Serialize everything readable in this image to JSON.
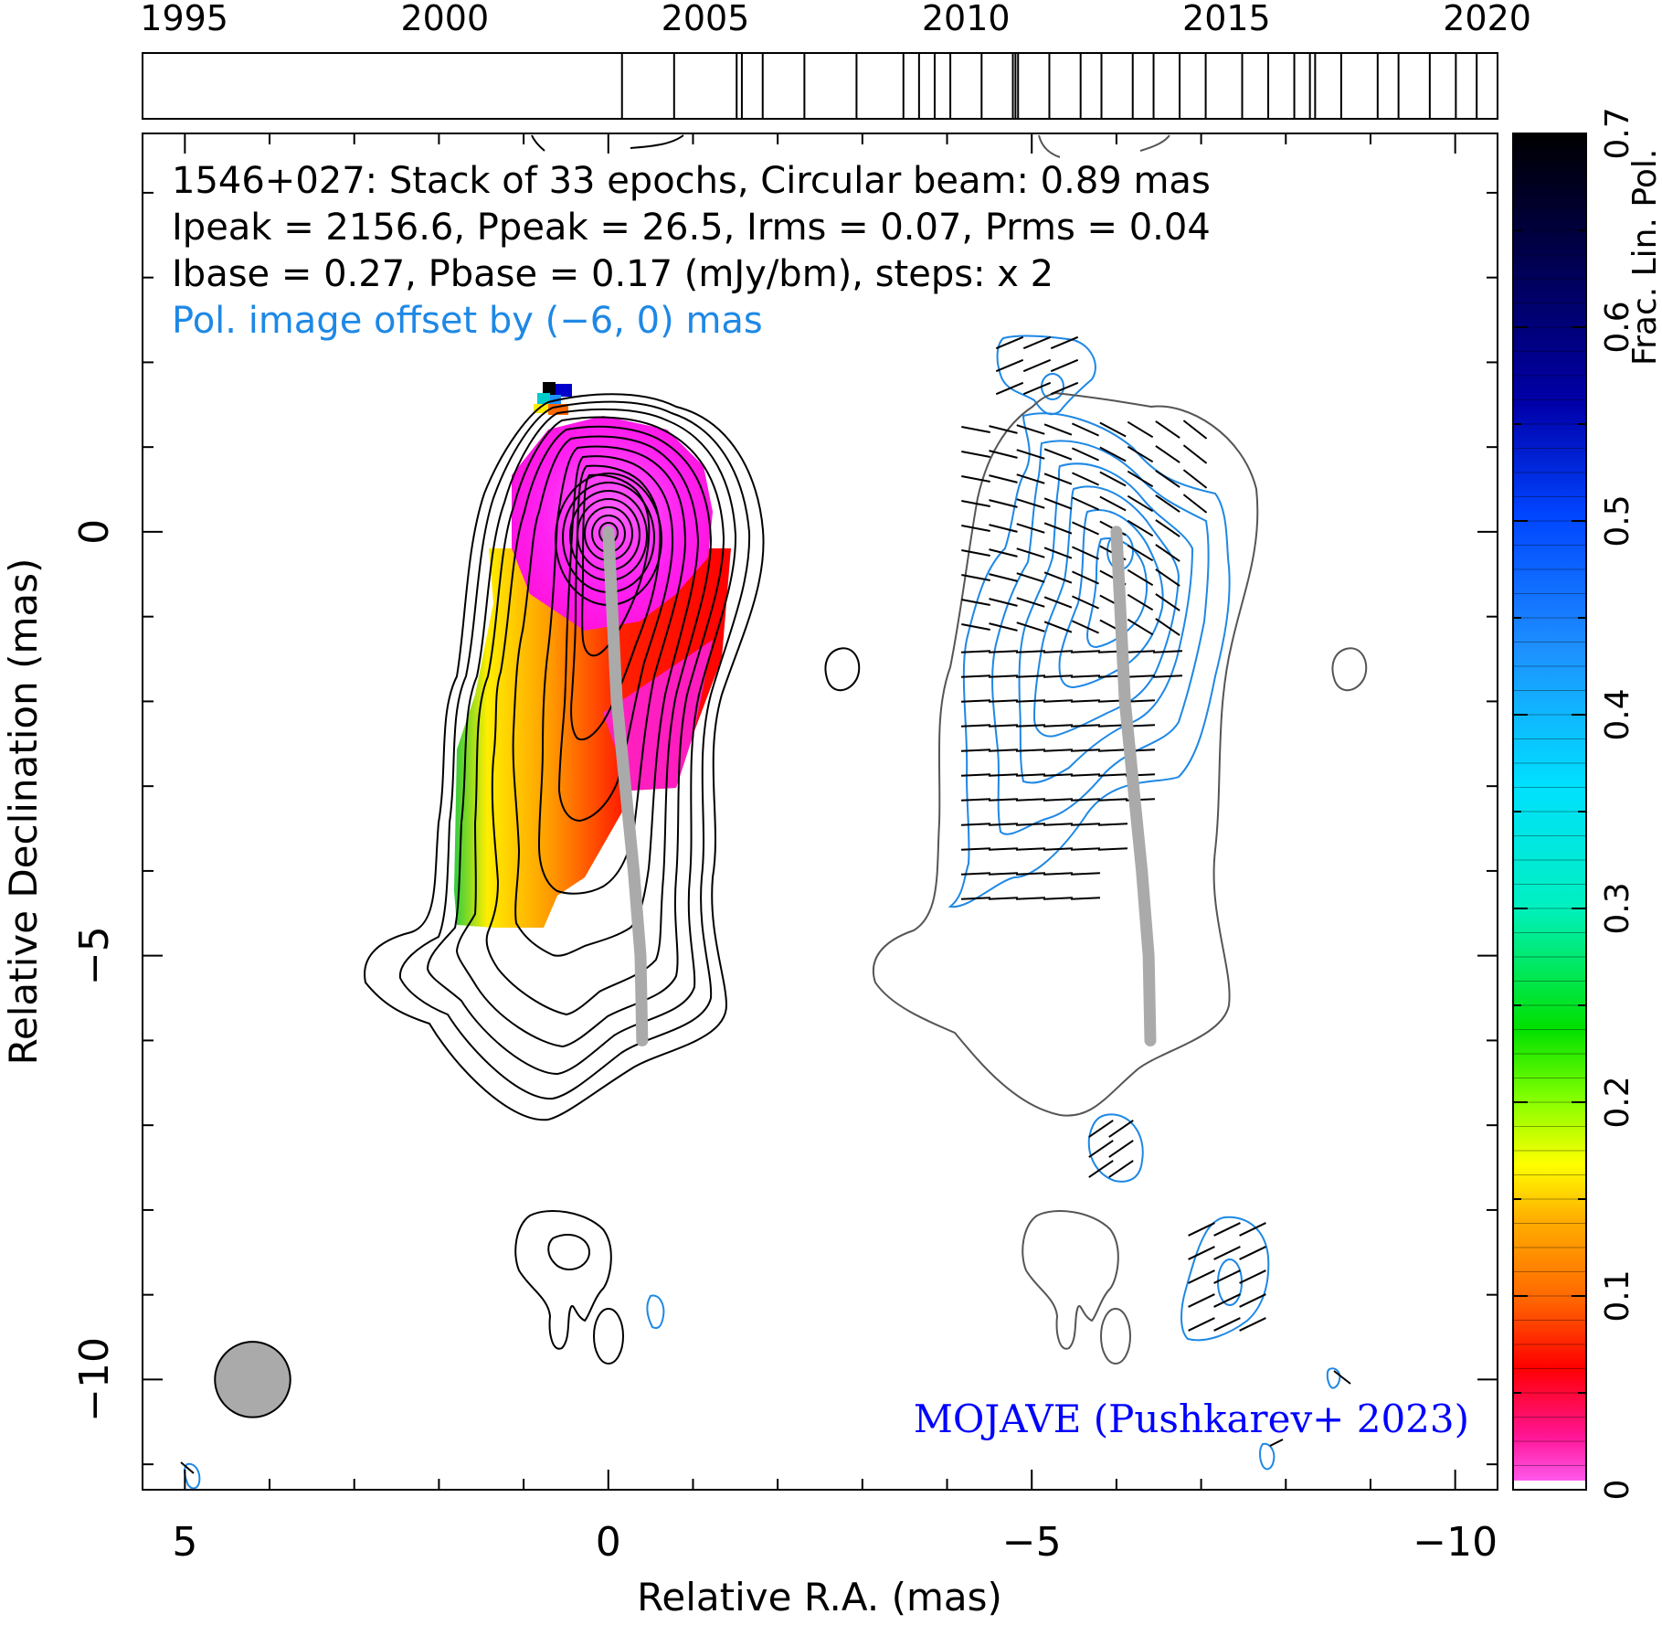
{
  "chart_data": {
    "type": "contour",
    "timeline": {
      "tick_labels": [
        "1995",
        "2000",
        "2005",
        "2010",
        "2015",
        "2020"
      ],
      "tick_years": [
        1995,
        2000,
        2005,
        2010,
        2015,
        2020
      ],
      "range": [
        1994.2,
        2020.2
      ],
      "epochs": [
        2003.4,
        2004.4,
        2005.6,
        2005.7,
        2006.1,
        2006.9,
        2007.9,
        2008.8,
        2009.1,
        2009.4,
        2009.7,
        2010.3,
        2010.9,
        2010.95,
        2011.0,
        2011.6,
        2012.2,
        2012.6,
        2013.2,
        2013.6,
        2014.1,
        2014.6,
        2015.3,
        2015.8,
        2016.3,
        2016.6,
        2016.7,
        2017.2,
        2017.9,
        2018.3,
        2018.9,
        2019.4,
        2019.8
      ]
    },
    "annotations": {
      "line1": "1546+027: Stack of 33 epochs, Circular beam: 0.89 mas",
      "line2": "Ipeak = 2156.6, Ppeak = 26.5, Irms = 0.07, Prms = 0.04",
      "line3": "Ibase = 0.27, Pbase = 0.17 (mJy/bm), steps: x 2",
      "pol_offset": "Pol. image offset by (−6, 0) mas",
      "credit": "MOJAVE (Pushkarev+ 2023)"
    },
    "xlabel": "Relative R.A. (mas)",
    "ylabel": "Relative Declination (mas)",
    "xlim": [
      5.5,
      -10.5
    ],
    "ylim": [
      -11.3,
      4.7
    ],
    "x_ticks": [
      5,
      0,
      -5,
      -10
    ],
    "x_tick_labels": [
      "5",
      "0",
      "−5",
      "−10"
    ],
    "y_ticks": [
      0,
      -5,
      -10
    ],
    "y_tick_labels": [
      "0",
      "−5",
      "−10"
    ],
    "colorbar": {
      "label": "Frac. Lin. Pol.",
      "range": [
        0,
        0.7
      ],
      "ticks": [
        0,
        0.1,
        0.2,
        0.3,
        0.4,
        0.5,
        0.6,
        0.7
      ],
      "tick_labels": [
        "0",
        "0.1",
        "0.2",
        "0.3",
        "0.4",
        "0.5",
        "0.6",
        "0.7"
      ]
    },
    "beam": {
      "x": 4.2,
      "y": -10.0,
      "diameter_mas": 0.89
    },
    "pol_offset_mas": [
      -6,
      0
    ],
    "ridge_line": [
      [
        0,
        0
      ],
      [
        -0.05,
        -1
      ],
      [
        -0.1,
        -2
      ],
      [
        -0.2,
        -3
      ],
      [
        -0.3,
        -4
      ],
      [
        -0.38,
        -5
      ],
      [
        -0.4,
        -6
      ]
    ],
    "colors": {
      "stokes_i_contours": "#000000",
      "pol_contours": "#1e88e5",
      "ridge_line": "#a9a9a9",
      "offset_i_contour": "#555555",
      "credit_text": "#0000ff",
      "pol_offset_text": "#1e88e5"
    }
  }
}
